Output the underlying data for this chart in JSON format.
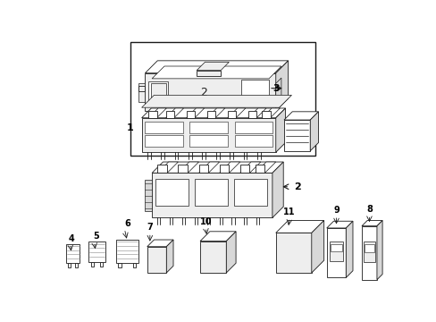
{
  "background_color": "#ffffff",
  "fig_width": 4.89,
  "fig_height": 3.6,
  "dpi": 100,
  "line_color": "#1a1a1a",
  "fill_color": "#ffffff",
  "shade_color": "#d8d8d8",
  "mid_shade": "#eeeeee"
}
